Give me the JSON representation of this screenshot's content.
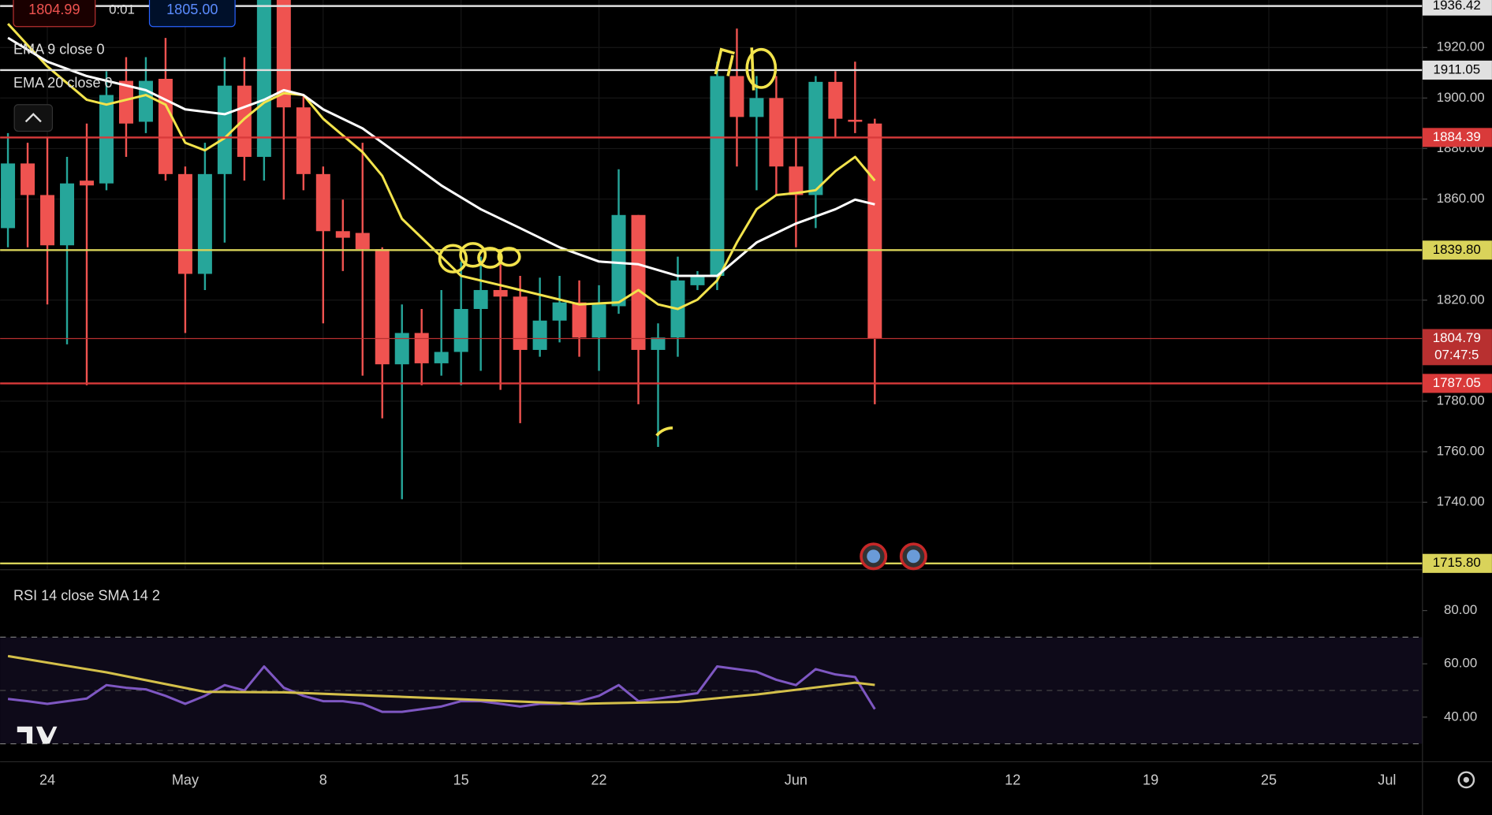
{
  "order_panel": {
    "bid": "1804.99",
    "spread": "0:01",
    "ask": "1805.00"
  },
  "chart_data": [
    {
      "type": "candlestick",
      "open": [
        1848.5,
        1874.1,
        1861.6,
        1841.7,
        1867.3,
        1866.2,
        1906.8,
        1890.6,
        1907.6,
        1869.9,
        1830.4,
        1869.9,
        1904.9,
        1876.7,
        1940,
        1896.3,
        1869.9,
        1847.3,
        1846.6,
        1840.2,
        1794.6,
        1807,
        1795,
        1799.5,
        1816.5,
        1824,
        1821.4,
        1800.3,
        1811.9,
        1819.1,
        1805.2,
        1817.6,
        1853.7,
        1800.3,
        1805.2,
        1825.9,
        1829.6,
        1908.7,
        1892.5,
        1900,
        1872.9,
        1861.6,
        1906.4,
        1891.4,
        1889.9
      ],
      "high": [
        1886.1,
        1882.3,
        1884.2,
        1876.7,
        1889.9,
        1910.6,
        1916.2,
        1916.2,
        1923.8,
        1872.9,
        1882.3,
        1916.2,
        1916.2,
        1945,
        1945,
        1901.2,
        1872.9,
        1859.8,
        1882.3,
        1840.9,
        1818.3,
        1816.5,
        1824,
        1835.3,
        1837.2,
        1837.2,
        1829.6,
        1828.9,
        1829.6,
        1827.8,
        1825.9,
        1871.8,
        1853.7,
        1810.8,
        1837.2,
        1831.5,
        1914.4,
        1927.5,
        1908.7,
        1908.7,
        1884.2,
        1908.7,
        1910.6,
        1914.4,
        1891.8
      ],
      "low": [
        1840.9,
        1840.9,
        1818.3,
        1802.5,
        1786.3,
        1863.5,
        1876.7,
        1886.1,
        1867.3,
        1807,
        1824,
        1842.8,
        1867.3,
        1867.3,
        1859.8,
        1863.5,
        1810.8,
        1831.5,
        1790.1,
        1773.2,
        1741.2,
        1786.3,
        1790.1,
        1786.3,
        1792,
        1784.5,
        1771.3,
        1797.6,
        1803.3,
        1797.6,
        1792,
        1814.6,
        1778.8,
        1761.9,
        1797.6,
        1824,
        1824,
        1872.9,
        1863.5,
        1861.6,
        1840.9,
        1848.5,
        1884.2,
        1886.1,
        1778.8
      ],
      "close": [
        1874.1,
        1861.6,
        1841.7,
        1866.2,
        1865.4,
        1901.2,
        1889.9,
        1906.8,
        1869.9,
        1830.4,
        1869.9,
        1904.9,
        1876.7,
        1940,
        1896.3,
        1869.9,
        1847.3,
        1844.7,
        1840.2,
        1794.6,
        1807,
        1795,
        1799.5,
        1816.5,
        1824,
        1821.4,
        1800.3,
        1811.9,
        1819.1,
        1805.2,
        1818.3,
        1853.7,
        1800.3,
        1805.2,
        1827.8,
        1829.6,
        1908.7,
        1892.5,
        1900,
        1872.9,
        1861.6,
        1906.4,
        1891.8,
        1890.6,
        1804.79
      ],
      "up_color": "#26a69a",
      "down_color": "#ef5350",
      "series": [
        {
          "name": "EMA 9 close 0",
          "color": "#f2e34c",
          "x": [
            0,
            2,
            4,
            5,
            7,
            8,
            9,
            10,
            11,
            12,
            13,
            14,
            15,
            16,
            18,
            19,
            20,
            22,
            23,
            25,
            27,
            29,
            31,
            32,
            33,
            34,
            35,
            36,
            37,
            38,
            39,
            40,
            41,
            42,
            43,
            44
          ],
          "values": [
            1929.4,
            1912.5,
            1899.3,
            1897.4,
            1901.2,
            1897.4,
            1882.3,
            1879.3,
            1884.2,
            1891.8,
            1898.2,
            1901.9,
            1901.2,
            1891.8,
            1878.6,
            1869.2,
            1852.2,
            1837.2,
            1829.6,
            1825.9,
            1822.1,
            1818.3,
            1819.1,
            1824,
            1818.3,
            1816.5,
            1820.2,
            1827.8,
            1842.8,
            1856,
            1861.6,
            1862.4,
            1863.5,
            1871.1,
            1876.7,
            1867.3
          ]
        },
        {
          "name": "EMA 20 close 0",
          "color": "#ffffff",
          "x": [
            0,
            2,
            4,
            7,
            9,
            11,
            13,
            14,
            15,
            16,
            18,
            20,
            22,
            24,
            26,
            28,
            30,
            32,
            34,
            36,
            38,
            40,
            42,
            43,
            44
          ],
          "values": [
            1923.8,
            1914.4,
            1908.7,
            1903.1,
            1895.5,
            1893.6,
            1899.3,
            1903.1,
            1901.2,
            1895.5,
            1888,
            1876.7,
            1865.4,
            1856,
            1848.5,
            1840.9,
            1835.3,
            1834.2,
            1829.6,
            1829.6,
            1842.8,
            1850.3,
            1856,
            1859.8,
            1857.9
          ]
        }
      ],
      "levels": [
        {
          "value": 1936.42,
          "label": "1936.42",
          "color": "#e0e0e0",
          "text_color": "#000000"
        },
        {
          "value": 1911.05,
          "label": "1911.05",
          "color": "#e0e0e0",
          "text_color": "#000000"
        },
        {
          "value": 1884.39,
          "label": "1884.39",
          "color": "#d93a3a",
          "text_color": "#ffffff"
        },
        {
          "value": 1839.8,
          "label": "1839.80",
          "color": "#d9d35a",
          "text_color": "#000000"
        },
        {
          "value": 1804.79,
          "label": "1804.79",
          "sublabel": "07:47:5",
          "color": "#b83030",
          "text_color": "#ffffff"
        },
        {
          "value": 1787.05,
          "label": "1787.05",
          "color": "#d93a3a",
          "text_color": "#ffffff"
        },
        {
          "value": 1715.8,
          "label": "1715.80",
          "color": "#d9d35a",
          "text_color": "#000000"
        }
      ],
      "xlim": [
        -0.4,
        71.8
      ],
      "xticks": [
        {
          "value": 2,
          "label": "24"
        },
        {
          "value": 9,
          "label": "May"
        },
        {
          "value": 16,
          "label": "8"
        },
        {
          "value": 23,
          "label": "15"
        },
        {
          "value": 30,
          "label": "22"
        },
        {
          "value": 40,
          "label": "Jun"
        },
        {
          "value": 51,
          "label": "12"
        },
        {
          "value": 58,
          "label": "19"
        },
        {
          "value": 64,
          "label": "25"
        },
        {
          "value": 70,
          "label": "Jul"
        }
      ],
      "ylim": [
        1713.7,
        1938.8
      ],
      "yticks": [
        {
          "value": 1740,
          "label": "1740.00"
        },
        {
          "value": 1760,
          "label": "1760.00"
        },
        {
          "value": 1780,
          "label": "1780.00"
        },
        {
          "value": 1820,
          "label": "1820.00"
        },
        {
          "value": 1860,
          "label": "1860.00"
        },
        {
          "value": 1880,
          "label": "1880.00"
        },
        {
          "value": 1900,
          "label": "1900.00"
        },
        {
          "value": 1920,
          "label": "1920.00"
        }
      ],
      "grid": true
    },
    {
      "type": "line",
      "title": "RSI 14 close SMA 14 2",
      "series": [
        {
          "color": "#7e57c2",
          "values": [
            46.8,
            46,
            45,
            46,
            47,
            52,
            51,
            50.4,
            48,
            45,
            48,
            52,
            50,
            59,
            51,
            48,
            46,
            46,
            45,
            42,
            42,
            43,
            44,
            46,
            46,
            45,
            44,
            45,
            45,
            46,
            48,
            52,
            46,
            47,
            48,
            49,
            59,
            58,
            57,
            54,
            52,
            58,
            56,
            55,
            43
          ]
        },
        {
          "color": "#d4c04a",
          "x": [
            0,
            5,
            10,
            14,
            19,
            24,
            29,
            34,
            38,
            43,
            44
          ],
          "values": [
            62.9,
            56.8,
            49.5,
            49.3,
            47.9,
            46.4,
            45,
            45.7,
            48.5,
            52.9,
            52.1
          ]
        }
      ],
      "bands": [
        30,
        70
      ],
      "midline": 50,
      "xlim": [
        -0.4,
        71.8
      ],
      "ylim": [
        23.6,
        95
      ],
      "yticks": [
        {
          "value": 40,
          "label": "40.00"
        },
        {
          "value": 60,
          "label": "60.00"
        },
        {
          "value": 80,
          "label": "80.00"
        }
      ],
      "grid": true
    }
  ]
}
